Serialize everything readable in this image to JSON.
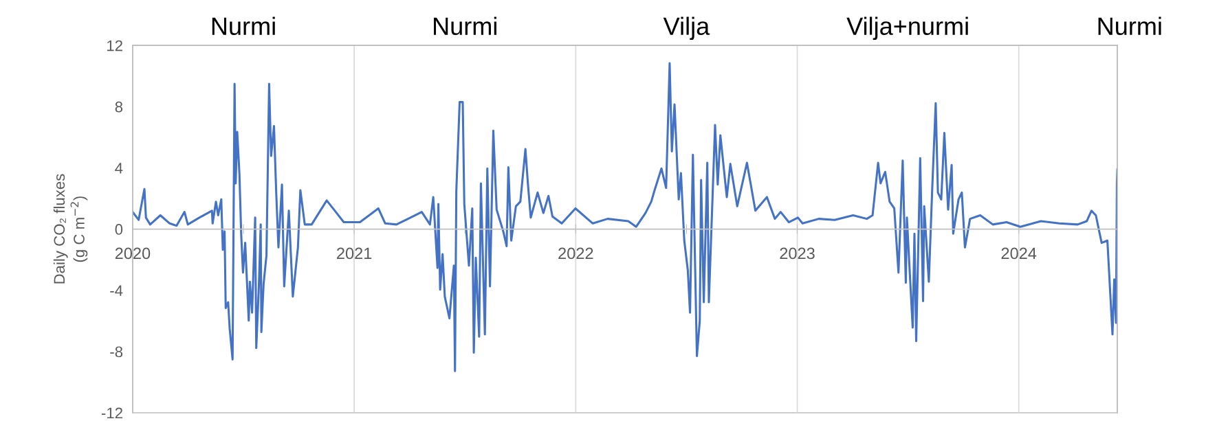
{
  "chart_data": {
    "type": "line",
    "ylabel": "Daily CO₂ fluxes\n(g C m$^{−2}$)",
    "annotations": [
      "Nurmi",
      "Nurmi",
      "Vilja",
      "Vilja+nurmi",
      "Nurmi"
    ],
    "xlim": [
      2020,
      2024.445
    ],
    "xticks": [
      2020,
      {
        "value": 2020.5,
        "label": null
      },
      2021,
      {
        "value": 2021.5,
        "label": null
      },
      2022,
      {
        "value": 2022.5,
        "label": null
      },
      2023,
      {
        "value": 2023.5,
        "label": null
      },
      2024
    ],
    "ylim": [
      -12,
      12
    ],
    "yticks": [
      -12,
      -8,
      -4,
      0,
      4,
      8,
      12
    ],
    "grid": "x",
    "marker": "none",
    "line_style": "solid",
    "series": [
      {
        "color": "#4472c4",
        "x": [
          2020.0,
          2020.027,
          2020.053,
          2020.06,
          2020.079,
          2020.125,
          2020.167,
          2020.198,
          2020.234,
          2020.249,
          2020.301,
          2020.358,
          2020.361,
          2020.376,
          2020.386,
          2020.4,
          2020.407,
          2020.415,
          2020.42,
          2020.431,
          2020.438,
          2020.451,
          2020.46,
          2020.465,
          2020.472,
          2020.482,
          2020.49,
          2020.498,
          2020.508,
          2020.524,
          2020.529,
          2020.539,
          2020.553,
          2020.558,
          2020.57,
          2020.578,
          2020.581,
          2020.591,
          2020.604,
          2020.616,
          2020.625,
          2020.638,
          2020.648,
          2020.658,
          2020.674,
          2020.684,
          2020.705,
          2020.723,
          2020.746,
          2020.757,
          2020.777,
          2020.808,
          2020.876,
          2020.917,
          2020.953,
          2021.026,
          2021.109,
          2021.14,
          2021.191,
          2021.254,
          2021.305,
          2021.342,
          2021.357,
          2021.376,
          2021.38,
          2021.388,
          2021.399,
          2021.409,
          2021.43,
          2021.45,
          2021.455,
          2021.461,
          2021.476,
          2021.49,
          2021.497,
          2021.518,
          2021.533,
          2021.54,
          2021.549,
          2021.564,
          2021.572,
          2021.59,
          2021.601,
          2021.613,
          2021.628,
          2021.643,
          2021.673,
          2021.688,
          2021.696,
          2021.709,
          2021.73,
          2021.75,
          2021.773,
          2021.784,
          2021.797,
          2021.828,
          2021.854,
          2021.877,
          2021.895,
          2021.937,
          2021.999,
          2022.077,
          2022.144,
          2022.237,
          2022.273,
          2022.315,
          2022.341,
          2022.356,
          2022.387,
          2022.408,
          2022.424,
          2022.434,
          2022.446,
          2022.465,
          2022.475,
          2022.49,
          2022.506,
          2022.516,
          2022.529,
          2022.547,
          2022.56,
          2022.566,
          2022.578,
          2022.594,
          2022.601,
          2022.629,
          2022.641,
          2022.653,
          2022.682,
          2022.698,
          2022.729,
          2022.773,
          2022.811,
          2022.863,
          2022.899,
          2022.925,
          2022.962,
          2023.003,
          2023.024,
          2023.097,
          2023.169,
          2023.252,
          2023.314,
          2023.34,
          2023.365,
          2023.376,
          2023.397,
          2023.417,
          2023.438,
          2023.457,
          2023.476,
          2023.49,
          2023.495,
          2023.521,
          2023.529,
          2023.537,
          2023.555,
          2023.568,
          2023.573,
          2023.594,
          2023.609,
          2023.625,
          2023.635,
          2023.65,
          2023.664,
          2023.681,
          2023.697,
          2023.704,
          2023.728,
          2023.743,
          2023.757,
          2023.78,
          2023.826,
          2023.883,
          2023.945,
          2024.007,
          2024.1,
          2024.183,
          2024.266,
          2024.307,
          2024.328,
          2024.348,
          2024.374,
          2024.4,
          2024.423,
          2024.431,
          2024.439,
          2024.443,
          2024.445
        ],
        "values": [
          1.12,
          0.6,
          2.62,
          0.75,
          0.3,
          0.9,
          0.37,
          0.22,
          1.12,
          0.3,
          0.75,
          1.2,
          0.37,
          1.79,
          0.9,
          1.94,
          -1.35,
          -0.15,
          -5.16,
          -4.78,
          -6.5,
          -8.52,
          9.49,
          2.99,
          6.35,
          3.59,
          -0.37,
          -2.84,
          -0.9,
          -5.98,
          -3.44,
          -5.46,
          0.75,
          -7.77,
          -3.59,
          0.3,
          -6.73,
          -3.59,
          -1.72,
          9.49,
          4.78,
          6.73,
          2.39,
          -1.2,
          2.91,
          -3.74,
          1.2,
          -4.41,
          -1.2,
          2.54,
          0.3,
          0.3,
          1.87,
          1.12,
          0.45,
          0.45,
          1.35,
          0.37,
          0.3,
          0.75,
          1.12,
          0.3,
          2.09,
          -2.54,
          1.64,
          -3.96,
          -1.64,
          -4.41,
          -5.83,
          -2.39,
          -9.27,
          2.47,
          8.3,
          8.3,
          1.64,
          -2.39,
          1.35,
          -8.07,
          -1.87,
          -7.03,
          2.99,
          -6.88,
          3.96,
          -3.74,
          6.43,
          1.27,
          -0.15,
          -1.12,
          4.04,
          -0.75,
          1.49,
          1.79,
          5.23,
          2.99,
          0.75,
          2.39,
          1.05,
          2.17,
          0.82,
          0.37,
          1.35,
          0.37,
          0.67,
          0.52,
          0.15,
          1.05,
          1.79,
          2.54,
          3.96,
          2.69,
          10.84,
          5.08,
          8.15,
          1.94,
          3.66,
          -0.75,
          -2.69,
          -5.46,
          4.86,
          -8.3,
          -5.98,
          3.21,
          -4.78,
          4.33,
          -4.78,
          6.8,
          2.91,
          6.13,
          2.09,
          4.26,
          1.49,
          4.33,
          1.2,
          2.09,
          0.67,
          1.12,
          0.45,
          0.75,
          0.37,
          0.67,
          0.6,
          0.9,
          0.67,
          0.9,
          4.33,
          2.99,
          3.74,
          1.79,
          1.35,
          -2.84,
          4.48,
          -3.51,
          0.75,
          -6.43,
          -0.3,
          -7.32,
          4.63,
          -4.71,
          1.49,
          -3.44,
          2.54,
          8.22,
          2.39,
          1.94,
          6.28,
          1.27,
          4.19,
          -0.3,
          1.94,
          2.39,
          -1.2,
          0.67,
          0.9,
          0.3,
          0.45,
          0.15,
          0.52,
          0.37,
          0.3,
          0.52,
          1.2,
          0.9,
          -0.9,
          -0.75,
          -6.88,
          -3.29,
          -6.13,
          2.99,
          3.89
        ]
      }
    ]
  }
}
